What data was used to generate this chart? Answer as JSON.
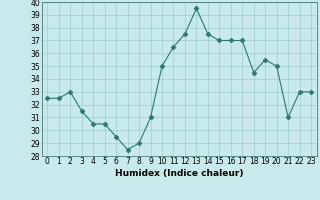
{
  "x": [
    0,
    1,
    2,
    3,
    4,
    5,
    6,
    7,
    8,
    9,
    10,
    11,
    12,
    13,
    14,
    15,
    16,
    17,
    18,
    19,
    20,
    21,
    22,
    23
  ],
  "y": [
    32.5,
    32.5,
    33,
    31.5,
    30.5,
    30.5,
    29.5,
    28.5,
    29,
    31,
    35,
    36.5,
    37.5,
    39.5,
    37.5,
    37,
    37,
    37,
    34.5,
    35.5,
    35,
    31,
    33,
    33
  ],
  "xlabel": "Humidex (Indice chaleur)",
  "ylim": [
    28,
    40
  ],
  "xlim": [
    -0.5,
    23.5
  ],
  "yticks": [
    28,
    29,
    30,
    31,
    32,
    33,
    34,
    35,
    36,
    37,
    38,
    39,
    40
  ],
  "xticks": [
    0,
    1,
    2,
    3,
    4,
    5,
    6,
    7,
    8,
    9,
    10,
    11,
    12,
    13,
    14,
    15,
    16,
    17,
    18,
    19,
    20,
    21,
    22,
    23
  ],
  "line_color": "#2a7a6a",
  "marker": "D",
  "marker_size": 2.5,
  "bg_color": "#c8eaea",
  "grid_color": "#a0cccc",
  "fig_bg": "#c8eaea",
  "tick_fontsize": 5.5,
  "xlabel_fontsize": 6.5
}
